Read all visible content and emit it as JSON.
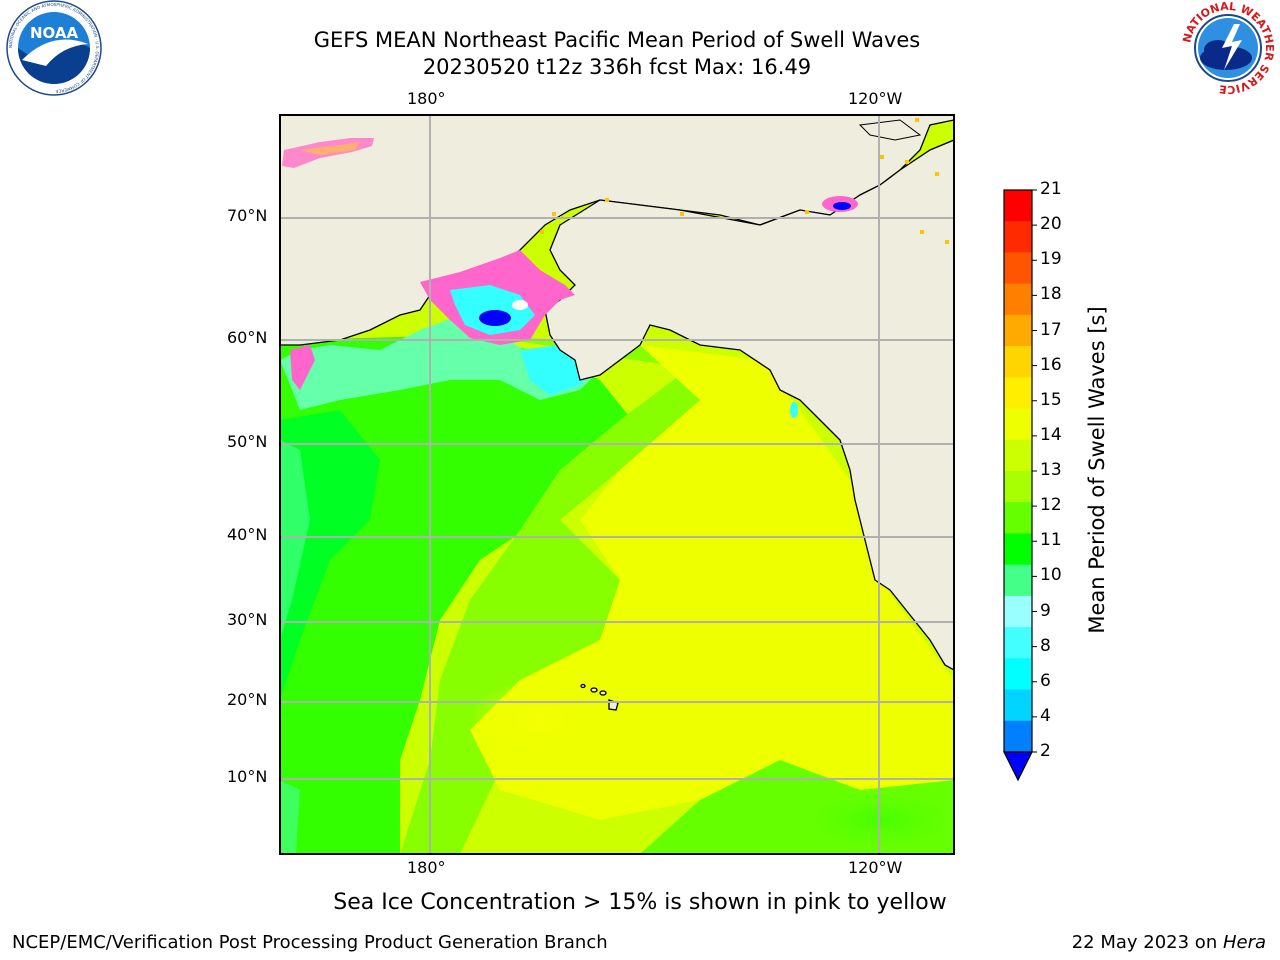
{
  "header": {
    "title_line1": "GEFS MEAN Northeast Pacific Mean Period of Swell Waves",
    "title_line2": "20230520 t12z 336h fcst   Max: 16.49"
  },
  "map": {
    "top_lon_labels": [
      "180°",
      "120°W"
    ],
    "bottom_lon_labels": [
      "180°",
      "120°W"
    ],
    "lat_labels": [
      "70°N",
      "60°N",
      "50°N",
      "40°N",
      "30°N",
      "20°N",
      "10°N"
    ],
    "land_color": "#efedde",
    "ocean_dominant_colors": [
      "#00ff00",
      "#66ff00",
      "#ccff00",
      "#eeff00"
    ]
  },
  "colorbar": {
    "label": "Mean Period of Swell Waves [s]",
    "ticks": [
      "21",
      "20",
      "19",
      "18",
      "17",
      "16",
      "15",
      "14",
      "13",
      "12",
      "11",
      "10",
      "9",
      "8",
      "6",
      "4",
      "2"
    ],
    "colors_top_to_bottom": [
      "#ff0000",
      "#ff2a00",
      "#ff5500",
      "#ff8000",
      "#ffaa00",
      "#ffd500",
      "#ffee00",
      "#eeff00",
      "#ccff00",
      "#a8ff00",
      "#66ff00",
      "#00ff00",
      "#44ff88",
      "#99ffff",
      "#44ffff",
      "#00ffff",
      "#00d4ff",
      "#007fff"
    ],
    "extend_color": "#0000ff"
  },
  "caption": "Sea Ice Concentration > 15% is shown in pink to yellow",
  "footer": {
    "left": "NCEP/EMC/Verification Post Processing Product Generation Branch",
    "right_date": "22 May 2023 on ",
    "right_host": "Hera"
  },
  "logos": {
    "noaa_text": "NOAA",
    "noaa_ring_text": "NATIONAL OCEANIC AND ATMOSPHERIC ADMINISTRATION · U.S. DEPARTMENT OF COMMERCE",
    "nws_ring_text": "NATIONAL WEATHER SERVICE"
  }
}
